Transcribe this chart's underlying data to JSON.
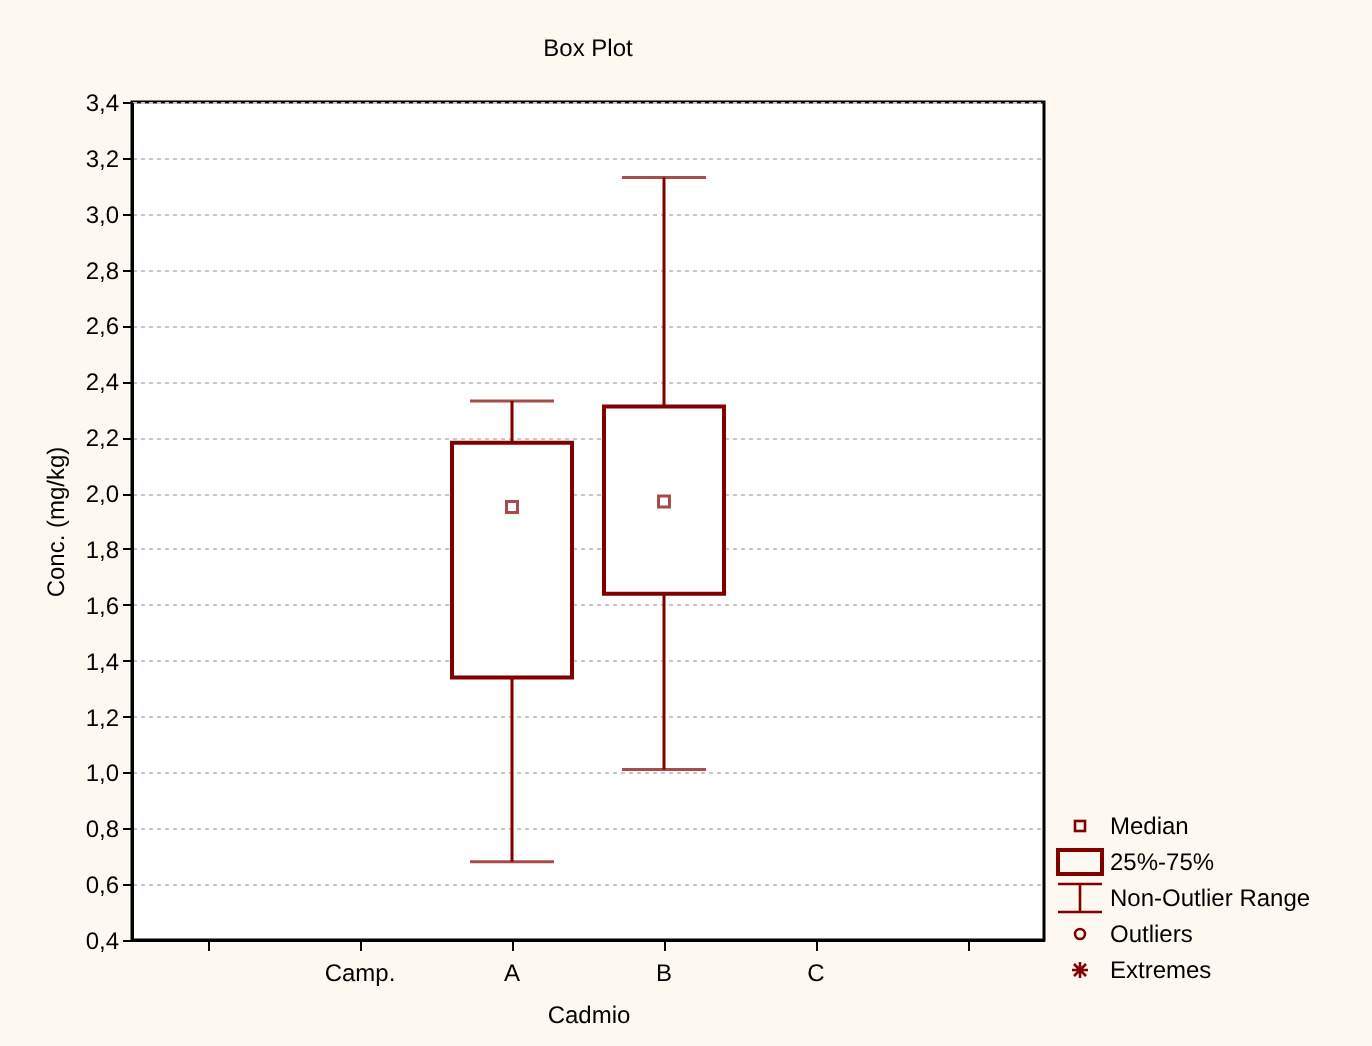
{
  "chart_data": {
    "type": "box",
    "title": "Box Plot",
    "xlabel": "Cadmio",
    "ylabel": "Conc. (mg/kg)",
    "categories": [
      null,
      "Camp.",
      "A",
      "B",
      "C",
      null
    ],
    "series": [
      {
        "color": "#800000",
        "boxes": [
          null,
          null,
          {
            "low": 0.68,
            "q1": 1.34,
            "median": 1.95,
            "q3": 2.18,
            "high": 2.33
          },
          {
            "low": 1.01,
            "q1": 1.64,
            "median": 1.97,
            "q3": 2.31,
            "high": 3.13
          },
          null,
          null
        ]
      }
    ],
    "ylim": [
      0.4,
      3.4
    ],
    "yticks": [
      {
        "value": 0.4,
        "label": "0,4"
      },
      {
        "value": 0.6,
        "label": "0,6"
      },
      {
        "value": 0.8,
        "label": "0,8"
      },
      {
        "value": 1.0,
        "label": "1,0"
      },
      {
        "value": 1.2,
        "label": "1,2"
      },
      {
        "value": 1.4,
        "label": "1,4"
      },
      {
        "value": 1.6,
        "label": "1,6"
      },
      {
        "value": 1.8,
        "label": "1,8"
      },
      {
        "value": 2.0,
        "label": "2,0"
      },
      {
        "value": 2.2,
        "label": "2,2"
      },
      {
        "value": 2.4,
        "label": "2,4"
      },
      {
        "value": 2.6,
        "label": "2,6"
      },
      {
        "value": 2.8,
        "label": "2,8"
      },
      {
        "value": 3.0,
        "label": "3,0"
      },
      {
        "value": 3.2,
        "label": "3,2"
      },
      {
        "value": 3.4,
        "label": "3,4"
      }
    ],
    "grid": "y",
    "marker": "square",
    "annotations": [
      "Median",
      "25%-75%",
      "Non-Outlier Range",
      "Outliers",
      "Extremes"
    ]
  }
}
